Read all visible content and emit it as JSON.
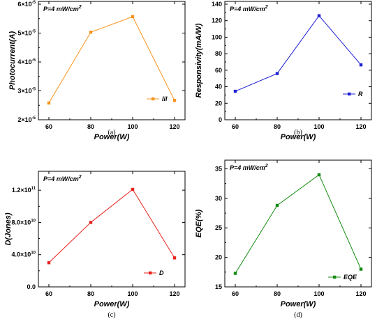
{
  "chart_data": [
    {
      "type": "line",
      "caption": "(a)",
      "annotation": "P=4 mW/cm",
      "annotation_sup": "2",
      "xlabel": "Power(W)",
      "ylabel": "Photocurrent(A)",
      "xlim": [
        55,
        125
      ],
      "ylim": [
        2e-05,
        6e-05
      ],
      "x": [
        60,
        80,
        100,
        120
      ],
      "series": [
        {
          "name": "Iil",
          "values": [
            2.58e-05,
            5.03e-05,
            5.57e-05,
            2.67e-05
          ],
          "color": "#f7941d"
        }
      ],
      "xticks": [
        60,
        80,
        100,
        120
      ],
      "xtick_labels": [
        "60",
        "80",
        "100",
        "120"
      ],
      "yticks": [
        2e-05,
        3e-05,
        4e-05,
        5e-05,
        6e-05
      ],
      "ytick_labels": [
        {
          "base": "2×10",
          "exp": "-5"
        },
        {
          "base": "3×10",
          "exp": "-5"
        },
        {
          "base": "4×10",
          "exp": "-5"
        },
        {
          "base": "5×10",
          "exp": "-5"
        },
        {
          "base": "6×10",
          "exp": "-5"
        }
      ]
    },
    {
      "type": "line",
      "caption": "(b)",
      "annotation": "P=4 mW/cm",
      "annotation_sup": "2",
      "xlabel": "Power(W)",
      "ylabel": "Responsivity(mA/W)",
      "xlim": [
        55,
        125
      ],
      "ylim": [
        0,
        140
      ],
      "x": [
        60,
        80,
        100,
        120
      ],
      "series": [
        {
          "name": "R",
          "values": [
            34.5,
            56,
            126,
            66.5
          ],
          "color": "#1f1fd6"
        }
      ],
      "xticks": [
        60,
        80,
        100,
        120
      ],
      "xtick_labels": [
        "60",
        "80",
        "100",
        "120"
      ],
      "yticks": [
        0,
        20,
        40,
        60,
        80,
        100,
        120,
        140
      ],
      "ytick_labels": [
        {
          "base": "0",
          "exp": ""
        },
        {
          "base": "20",
          "exp": ""
        },
        {
          "base": "40",
          "exp": ""
        },
        {
          "base": "60",
          "exp": ""
        },
        {
          "base": "80",
          "exp": ""
        },
        {
          "base": "100",
          "exp": ""
        },
        {
          "base": "120",
          "exp": ""
        },
        {
          "base": "140",
          "exp": ""
        }
      ]
    },
    {
      "type": "line",
      "caption": "(c)",
      "annotation": "P=4 mW/cm",
      "annotation_sup": "2",
      "xlabel": "Power(W)",
      "ylabel": "D(Jones)",
      "xlim": [
        55,
        125
      ],
      "ylim": [
        0,
        140000000000.0
      ],
      "x": [
        60,
        80,
        100,
        120
      ],
      "series": [
        {
          "name": "D",
          "values": [
            30000000000.0,
            80000000000.0,
            121000000000.0,
            36000000000.0
          ],
          "color": "#e8231e"
        }
      ],
      "xticks": [
        60,
        80,
        100,
        120
      ],
      "xtick_labels": [
        "60",
        "80",
        "100",
        "120"
      ],
      "yticks": [
        0,
        40000000000.0,
        80000000000.0,
        120000000000.0
      ],
      "ytick_labels": [
        {
          "base": "0.0",
          "exp": ""
        },
        {
          "base": "4.0×10",
          "exp": "10"
        },
        {
          "base": "8.0×10",
          "exp": "10"
        },
        {
          "base": "1.2×10",
          "exp": "11"
        }
      ]
    },
    {
      "type": "line",
      "caption": "(d)",
      "annotation": "P=4 mW/cm",
      "annotation_sup": "2",
      "xlabel": "Power(W)",
      "ylabel": "EQE(%)",
      "xlim": [
        55,
        125
      ],
      "ylim": [
        15,
        36
      ],
      "x": [
        60,
        80,
        100,
        120
      ],
      "series": [
        {
          "name": "EQE",
          "values": [
            17.3,
            28.8,
            34.0,
            18.0
          ],
          "color": "#138a13"
        }
      ],
      "xticks": [
        60,
        80,
        100,
        120
      ],
      "xtick_labels": [
        "60",
        "80",
        "100",
        "120"
      ],
      "yticks": [
        15,
        20,
        25,
        30,
        35
      ],
      "ytick_labels": [
        {
          "base": "15",
          "exp": ""
        },
        {
          "base": "20",
          "exp": ""
        },
        {
          "base": "25",
          "exp": ""
        },
        {
          "base": "30",
          "exp": ""
        },
        {
          "base": "35",
          "exp": ""
        }
      ]
    }
  ]
}
